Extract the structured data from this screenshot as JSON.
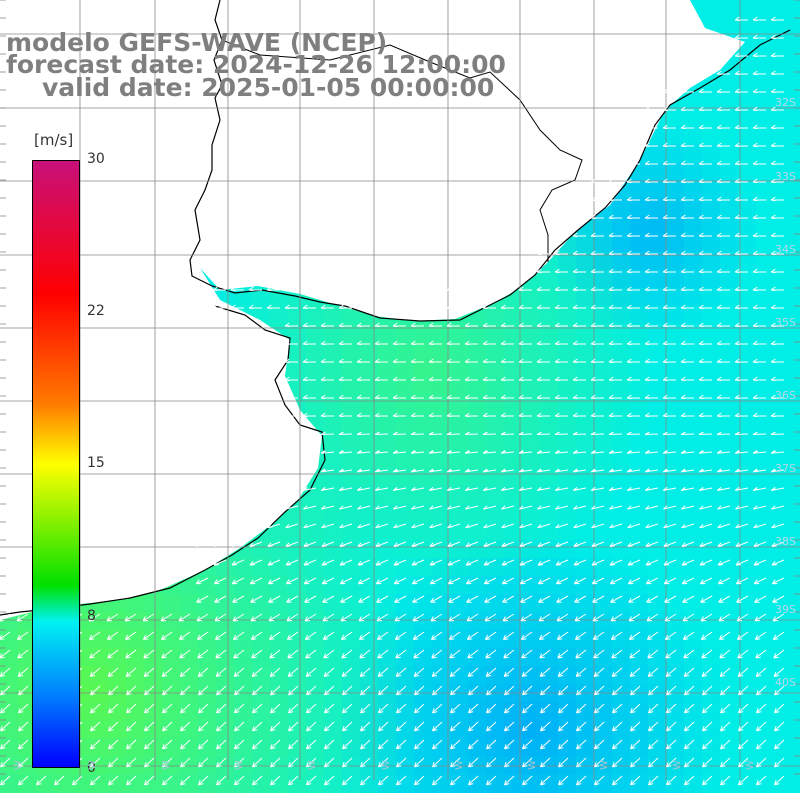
{
  "title": {
    "line1": "modelo GEFS-WAVE (NCEP)",
    "line2": "forecast date: 2024-12-26 12:00:00",
    "line3": "valid date: 2025-01-05 00:00:00"
  },
  "colorbar": {
    "unit": "[m/s]",
    "ticks": [
      {
        "label": "30",
        "value": 30
      },
      {
        "label": "22",
        "value": 22
      },
      {
        "label": "15",
        "value": 15
      },
      {
        "label": "8",
        "value": 8
      },
      {
        "label": "0",
        "value": 0
      }
    ]
  },
  "latitude_labels": [
    "32S",
    "33S",
    "34S",
    "35S",
    "36S",
    "37S",
    "38S",
    "39S",
    "40S"
  ],
  "longitude_labels": [
    "W",
    "W",
    "W",
    "W",
    "W",
    "W",
    "W",
    "W",
    "W",
    "W",
    "W"
  ],
  "field": {
    "quantity": "wind speed",
    "arrow_direction": "onshore from east, turning southwest in south"
  }
}
